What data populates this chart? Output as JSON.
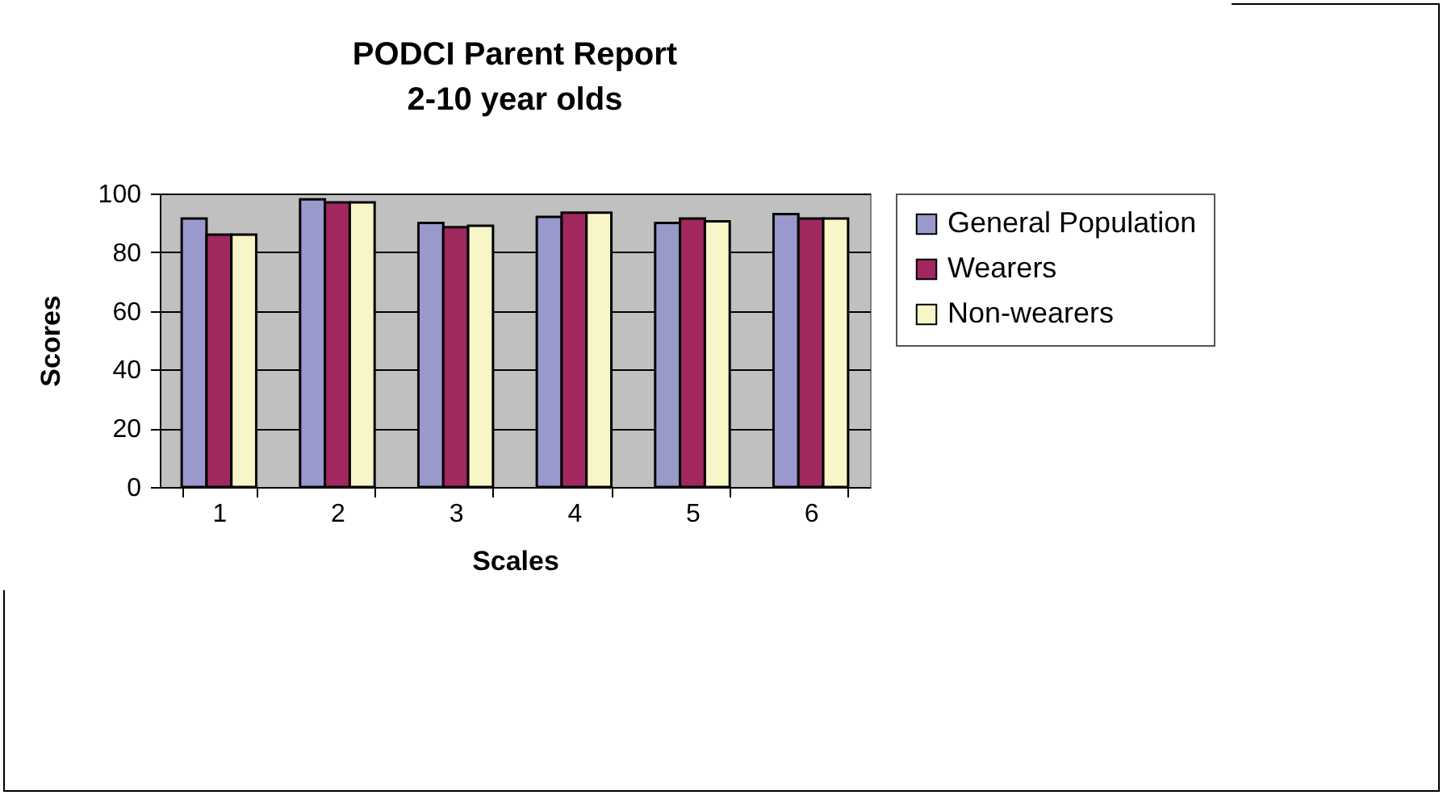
{
  "chart_data": {
    "type": "bar",
    "title": "PODCI Parent Report",
    "subtitle": "2-10 year olds",
    "xlabel": "Scales",
    "ylabel": "Scores",
    "categories": [
      "1",
      "2",
      "3",
      "4",
      "5",
      "6"
    ],
    "series": [
      {
        "name": "General Population",
        "color": "#9999cc",
        "values": [
          91.5,
          98,
          90,
          92,
          90,
          93
        ]
      },
      {
        "name": "Wearers",
        "color": "#a0285f",
        "values": [
          86,
          97,
          88.5,
          93.5,
          91.5,
          91.5
        ]
      },
      {
        "name": "Non-wearers",
        "color": "#f8f5c8",
        "values": [
          86,
          97,
          89,
          93.5,
          90.5,
          91.5
        ]
      }
    ],
    "ylim": [
      0,
      100
    ],
    "yticks": [
      0,
      20,
      40,
      60,
      80,
      100
    ],
    "grid": "y",
    "legend": "right"
  }
}
